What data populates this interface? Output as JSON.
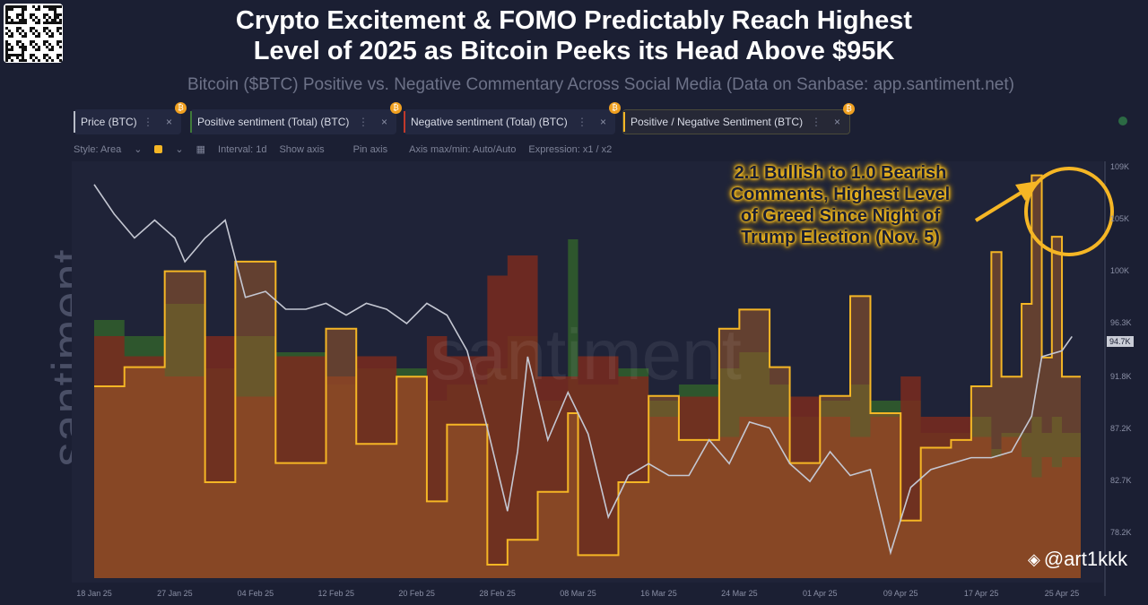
{
  "header": {
    "title_line1": "Crypto Excitement & FOMO Predictably Reach Highest",
    "title_line2": "Level of 2025 as Bitcoin Peeks its Head Above $95K",
    "subtitle": "Bitcoin ($BTC) Positive vs. Negative Commentary Across Social Media (Data on Sanbase: app.santiment.net)"
  },
  "branding": {
    "side_logo": "santiment.",
    "watermark": "santiment",
    "handle": "@art1kkk"
  },
  "legend_tabs": [
    {
      "label": "Price (BTC)",
      "color": "#b8bcc8"
    },
    {
      "label": "Positive sentiment (Total) (BTC)",
      "color": "#3f7a3a"
    },
    {
      "label": "Negative sentiment (Total) (BTC)",
      "color": "#c0392b"
    },
    {
      "label": "Positive / Negative Sentiment (BTC)",
      "color": "#f5b625"
    }
  ],
  "toolbar": {
    "style": "Style: Area",
    "interval": "Interval: 1d",
    "show_axis": "Show axis",
    "pin_axis": "Pin axis",
    "axis_maxmin": "Axis max/min: Auto/Auto",
    "expression": "Expression: x1 / x2"
  },
  "annotation": {
    "line1": "2.1 Bullish to 1.0 Bearish",
    "line2": "Comments, Highest Level",
    "line3": "of Greed Since Night of",
    "line4": "Trump Election (Nov. 5)"
  },
  "colors": {
    "background": "#1b1f33",
    "price": "#b8bcc8",
    "positive": "#2f5a2c",
    "negative": "#7a2a1e",
    "ratio": "#f5b625",
    "ratio_fill": "#9a5a2a"
  },
  "chart_data": {
    "type": "area",
    "y_axis_ticks": [
      "109K",
      "105K",
      "100K",
      "96.3K",
      "91.8K",
      "87.2K",
      "82.7K",
      "78.2K"
    ],
    "price_label": "94.7K",
    "x_ticks": [
      "18 Jan 25",
      "27 Jan 25",
      "04 Feb 25",
      "12 Feb 25",
      "20 Feb 25",
      "28 Feb 25",
      "08 Mar 25",
      "16 Mar 25",
      "24 Mar 25",
      "01 Apr 25",
      "09 Apr 25",
      "17 Apr 25",
      "25 Apr 25"
    ],
    "price": [
      [
        "2025-01-18",
        107.5
      ],
      [
        "2025-01-20",
        105
      ],
      [
        "2025-01-22",
        103
      ],
      [
        "2025-01-24",
        104.5
      ],
      [
        "2025-01-26",
        103
      ],
      [
        "2025-01-27",
        101
      ],
      [
        "2025-01-29",
        103
      ],
      [
        "2025-01-31",
        104.5
      ],
      [
        "2025-02-02",
        98
      ],
      [
        "2025-02-04",
        98.5
      ],
      [
        "2025-02-06",
        97
      ],
      [
        "2025-02-08",
        97
      ],
      [
        "2025-02-10",
        97.5
      ],
      [
        "2025-02-12",
        96.5
      ],
      [
        "2025-02-14",
        97.5
      ],
      [
        "2025-02-16",
        97
      ],
      [
        "2025-02-18",
        95.8
      ],
      [
        "2025-02-20",
        97.5
      ],
      [
        "2025-02-22",
        96.5
      ],
      [
        "2025-02-24",
        93.5
      ],
      [
        "2025-02-26",
        87
      ],
      [
        "2025-02-28",
        80
      ],
      [
        "2025-03-01",
        85
      ],
      [
        "2025-03-02",
        93
      ],
      [
        "2025-03-04",
        86
      ],
      [
        "2025-03-06",
        90
      ],
      [
        "2025-03-08",
        86.5
      ],
      [
        "2025-03-10",
        79.5
      ],
      [
        "2025-03-12",
        83
      ],
      [
        "2025-03-14",
        84
      ],
      [
        "2025-03-16",
        83
      ],
      [
        "2025-03-18",
        83
      ],
      [
        "2025-03-20",
        86
      ],
      [
        "2025-03-22",
        84
      ],
      [
        "2025-03-24",
        87.5
      ],
      [
        "2025-03-26",
        87
      ],
      [
        "2025-03-28",
        84
      ],
      [
        "2025-03-30",
        82.5
      ],
      [
        "2025-04-01",
        85
      ],
      [
        "2025-04-03",
        83
      ],
      [
        "2025-04-05",
        83.5
      ],
      [
        "2025-04-07",
        76.5
      ],
      [
        "2025-04-09",
        82
      ],
      [
        "2025-04-11",
        83.5
      ],
      [
        "2025-04-13",
        84
      ],
      [
        "2025-04-15",
        84.5
      ],
      [
        "2025-04-17",
        84.5
      ],
      [
        "2025-04-19",
        85
      ],
      [
        "2025-04-21",
        88
      ],
      [
        "2025-04-22",
        93
      ],
      [
        "2025-04-24",
        93.5
      ],
      [
        "2025-04-25",
        94.7
      ]
    ],
    "sentiment_dates": [
      "2025-01-18",
      "2025-01-21",
      "2025-01-25",
      "2025-01-29",
      "2025-02-01",
      "2025-02-05",
      "2025-02-10",
      "2025-02-13",
      "2025-02-17",
      "2025-02-20",
      "2025-02-22",
      "2025-02-26",
      "2025-02-28",
      "2025-03-03",
      "2025-03-06",
      "2025-03-07",
      "2025-03-11",
      "2025-03-14",
      "2025-03-17",
      "2025-03-21",
      "2025-03-23",
      "2025-03-26",
      "2025-03-28",
      "2025-03-31",
      "2025-04-03",
      "2025-04-05",
      "2025-04-08",
      "2025-04-10",
      "2025-04-13",
      "2025-04-15",
      "2025-04-17",
      "2025-04-18",
      "2025-04-20",
      "2025-04-21",
      "2025-04-22",
      "2025-04-23",
      "2025-04-24"
    ],
    "positive": [
      1.6,
      1.5,
      1.7,
      1.3,
      1.5,
      1.4,
      1.2,
      1.3,
      1.3,
      1.1,
      1.2,
      1.3,
      1.5,
      1.1,
      2.1,
      1.2,
      1.3,
      1.1,
      1.2,
      1.3,
      1.4,
      1.2,
      1.0,
      1.1,
      1.2,
      1.1,
      1.1,
      0.9,
      0.9,
      1.0,
      0.8,
      0.9,
      0.9,
      1.0,
      0.9,
      1.0,
      0.9
    ],
    "negative": [
      1.2,
      1.1,
      1.0,
      1.2,
      0.9,
      1.1,
      1.0,
      1.1,
      1.0,
      1.2,
      1.1,
      1.5,
      1.6,
      1.0,
      1.0,
      1.1,
      1.0,
      0.8,
      0.9,
      0.7,
      0.8,
      0.8,
      0.9,
      0.8,
      0.7,
      0.8,
      1.0,
      0.8,
      0.8,
      0.7,
      0.6,
      0.7,
      0.6,
      0.5,
      0.6,
      0.55,
      0.6
    ],
    "ratio": [
      1.0,
      1.1,
      1.6,
      0.5,
      1.65,
      0.6,
      1.3,
      0.7,
      1.05,
      0.4,
      0.8,
      0.07,
      0.2,
      0.45,
      0.86,
      0.12,
      0.5,
      0.95,
      0.72,
      1.3,
      1.4,
      1.1,
      0.6,
      0.95,
      1.47,
      0.86,
      0.3,
      0.68,
      0.72,
      1.0,
      1.7,
      1.05,
      1.43,
      2.1,
      1.15,
      1.78,
      1.05
    ]
  }
}
